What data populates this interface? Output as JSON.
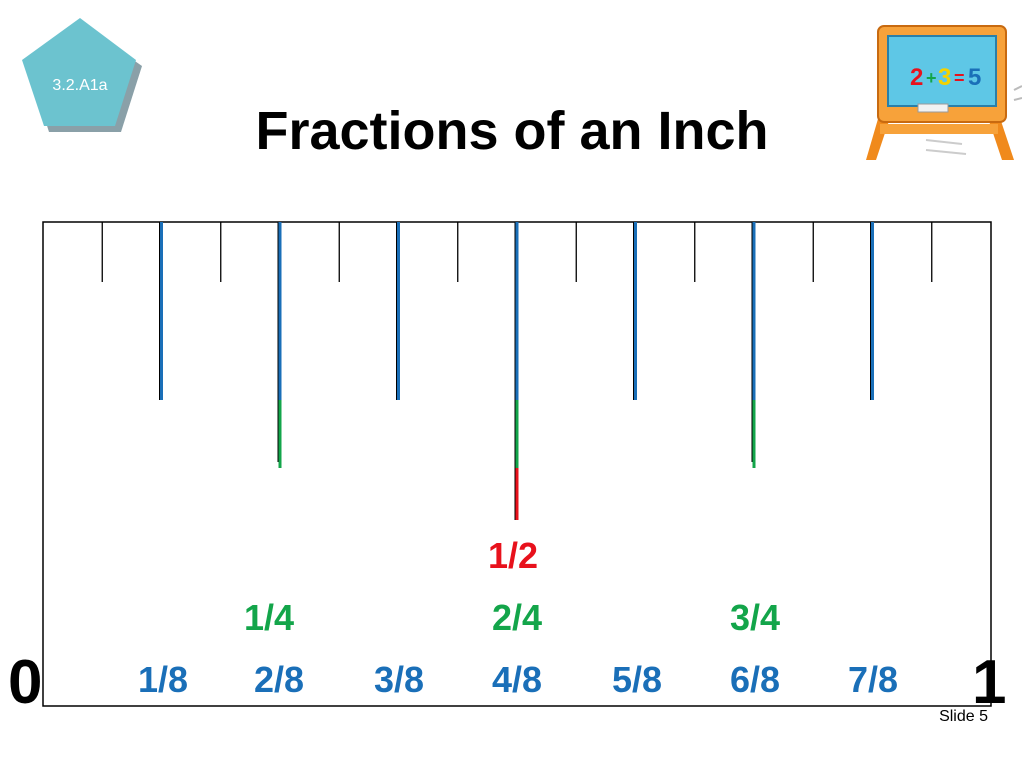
{
  "badge": {
    "label": "3.2.A1a",
    "fill": "#6cc3cf",
    "shadow": "#8aa0a8"
  },
  "title": "Fractions of an Inch",
  "board_equation": {
    "a": "2",
    "plus": "+",
    "b": "3",
    "eq": "=",
    "c": "5"
  },
  "ruler": {
    "left_label": "0",
    "right_label": "1",
    "halves": [
      "1/2"
    ],
    "quarters": [
      "1/4",
      "2/4",
      "3/4"
    ],
    "eighths": [
      "1/8",
      "2/8",
      "3/8",
      "4/8",
      "5/8",
      "6/8",
      "7/8"
    ]
  },
  "colors": {
    "half": "#e8111c",
    "quarter": "#13a54a",
    "eighth": "#1a6fb8",
    "sixteenth": "#000000"
  },
  "footer": {
    "slide_number": "Slide 5"
  }
}
